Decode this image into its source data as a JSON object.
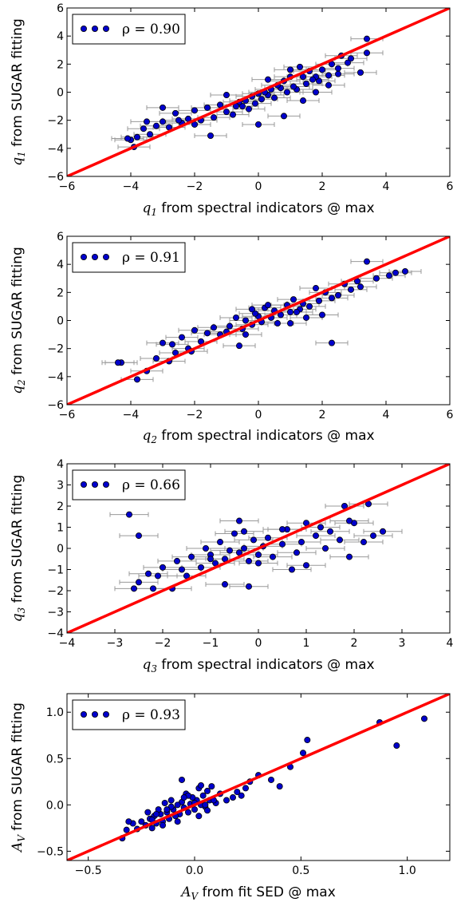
{
  "chart_data": [
    {
      "type": "scatter",
      "xlabel_var": "q",
      "xlabel_sub": "1",
      "xlabel_rest": " from spectral indicators @ max",
      "ylabel_var": "q",
      "ylabel_sub": "1",
      "ylabel_rest": " from SUGAR fitting",
      "xlim": [
        -6,
        6
      ],
      "ylim": [
        -6,
        6
      ],
      "xticks": [
        -6,
        -4,
        -2,
        0,
        2,
        4,
        6
      ],
      "yticks": [
        -6,
        -4,
        -2,
        0,
        2,
        4,
        6
      ],
      "xtick_labels": [
        "−6",
        "−4",
        "−2",
        "0",
        "2",
        "4",
        "6"
      ],
      "ytick_labels": [
        "−6",
        "−4",
        "−2",
        "0",
        "2",
        "4",
        "6"
      ],
      "legend": "ρ = 0.90",
      "legend_placement": "top-left",
      "line": [
        [
          -6,
          -6
        ],
        [
          6,
          6
        ]
      ],
      "xerr": 0.5,
      "x": [
        3.4,
        3.4,
        3.2,
        2.9,
        2.8,
        2.6,
        2.5,
        2.3,
        2.2,
        2.0,
        1.9,
        1.8,
        1.7,
        1.6,
        1.5,
        1.4,
        1.3,
        1.2,
        1.1,
        1.0,
        0.9,
        0.8,
        0.7,
        0.6,
        0.5,
        0.4,
        0.3,
        0.2,
        0.1,
        0.0,
        -0.1,
        -0.2,
        -0.3,
        -0.4,
        -0.5,
        -0.6,
        -0.8,
        -1.0,
        -1.2,
        -1.4,
        -1.6,
        -1.8,
        -2.0,
        -2.2,
        -2.4,
        -2.6,
        -2.8,
        -3.0,
        -3.2,
        -3.4,
        -3.6,
        -3.8,
        -4.0,
        -4.1,
        -3.0,
        -2.0,
        -1.5,
        0.0,
        0.8,
        1.4,
        2.2,
        1.0,
        2.5,
        1.8,
        0.3,
        -0.7,
        -1.0,
        -2.5,
        -3.5,
        -3.9
      ],
      "y": [
        3.8,
        2.8,
        1.4,
        2.4,
        2.1,
        2.6,
        1.7,
        2.0,
        1.2,
        1.6,
        0.8,
        1.1,
        0.9,
        1.5,
        0.6,
        -0.6,
        1.8,
        0.2,
        0.4,
        1.1,
        0.0,
        0.8,
        0.3,
        0.5,
        -0.4,
        0.2,
        -0.2,
        0.0,
        -0.5,
        -0.1,
        -0.8,
        -0.3,
        -1.2,
        -0.6,
        -1.0,
        -0.7,
        -1.6,
        -1.4,
        -0.9,
        -1.8,
        -1.1,
        -2.0,
        -1.3,
        -1.9,
        -2.2,
        -1.5,
        -2.5,
        -2.1,
        -2.4,
        -3.0,
        -2.6,
        -3.2,
        -3.4,
        -3.3,
        -1.1,
        -2.3,
        -3.1,
        -2.3,
        -1.7,
        1.1,
        0.5,
        1.6,
        1.3,
        0.0,
        0.9,
        -1.0,
        -0.2,
        -2.0,
        -2.1,
        -3.9
      ]
    },
    {
      "type": "scatter",
      "xlabel_var": "q",
      "xlabel_sub": "2",
      "xlabel_rest": " from spectral indicators @ max",
      "ylabel_var": "q",
      "ylabel_sub": "2",
      "ylabel_rest": " from SUGAR fitting",
      "xlim": [
        -6,
        6
      ],
      "ylim": [
        -6,
        6
      ],
      "xticks": [
        -6,
        -4,
        -2,
        0,
        2,
        4,
        6
      ],
      "yticks": [
        -6,
        -4,
        -2,
        0,
        2,
        4,
        6
      ],
      "xtick_labels": [
        "−6",
        "−4",
        "−2",
        "0",
        "2",
        "4",
        "6"
      ],
      "ytick_labels": [
        "−6",
        "−4",
        "−2",
        "0",
        "2",
        "4",
        "6"
      ],
      "legend": "ρ = 0.91",
      "legend_placement": "top-left",
      "line": [
        [
          -6,
          -6
        ],
        [
          6,
          6
        ]
      ],
      "xerr": 0.5,
      "x": [
        4.6,
        4.3,
        4.1,
        3.7,
        3.4,
        3.1,
        3.2,
        2.9,
        2.7,
        2.5,
        2.3,
        2.1,
        1.9,
        1.8,
        1.6,
        1.4,
        1.3,
        1.1,
        1.0,
        0.9,
        0.7,
        0.5,
        0.4,
        0.2,
        0.1,
        0.0,
        -0.1,
        -0.2,
        -0.4,
        -0.5,
        -0.7,
        -0.9,
        -1.0,
        -1.2,
        -1.4,
        -1.6,
        -1.8,
        -2.0,
        -2.2,
        -2.4,
        -2.6,
        -2.8,
        -3.0,
        -3.2,
        -3.5,
        -3.8,
        -4.3,
        -4.4,
        2.3,
        1.5,
        0.6,
        -0.4,
        -0.6,
        -2.1,
        -2.7,
        1.2,
        0.3,
        -0.2,
        2.0,
        1.0
      ],
      "y": [
        3.5,
        3.4,
        3.2,
        3.0,
        4.2,
        2.8,
        2.4,
        2.2,
        2.6,
        1.8,
        1.6,
        2.0,
        1.4,
        2.3,
        1.0,
        1.2,
        0.8,
        1.5,
        0.6,
        1.1,
        0.4,
        0.7,
        0.2,
        0.9,
        -0.1,
        0.3,
        0.5,
        -0.3,
        0.0,
        -0.6,
        0.2,
        -0.4,
        -0.8,
        -1.0,
        -0.5,
        -0.9,
        -1.5,
        -0.7,
        -2.0,
        -1.2,
        -2.3,
        -2.9,
        -1.6,
        -2.7,
        -3.6,
        -4.2,
        -3.0,
        -3.0,
        -1.6,
        0.2,
        -0.2,
        -1.0,
        -1.8,
        -2.2,
        -1.7,
        0.6,
        1.1,
        0.8,
        0.4,
        -0.2
      ]
    },
    {
      "type": "scatter",
      "xlabel_var": "q",
      "xlabel_sub": "3",
      "xlabel_rest": " from spectral indicators @ max",
      "ylabel_var": "q",
      "ylabel_sub": "3",
      "ylabel_rest": " from SUGAR fitting",
      "xlim": [
        -4,
        4
      ],
      "ylim": [
        -4,
        4
      ],
      "xticks": [
        -4,
        -3,
        -2,
        -1,
        0,
        1,
        2,
        3,
        4
      ],
      "yticks": [
        -4,
        -3,
        -2,
        -1,
        0,
        1,
        2,
        3,
        4
      ],
      "xtick_labels": [
        "−4",
        "−3",
        "−2",
        "−1",
        "0",
        "1",
        "2",
        "3",
        "4"
      ],
      "ytick_labels": [
        "−4",
        "−3",
        "−2",
        "−1",
        "0",
        "1",
        "2",
        "3",
        "4"
      ],
      "legend": "ρ = 0.66",
      "legend_placement": "top-left",
      "line": [
        [
          -4,
          -4
        ],
        [
          4,
          4
        ]
      ],
      "xerr": 0.4,
      "x": [
        2.3,
        1.8,
        2.6,
        2.4,
        2.0,
        1.9,
        1.7,
        1.5,
        1.4,
        1.2,
        1.0,
        0.9,
        0.8,
        0.6,
        0.5,
        0.3,
        0.2,
        0.1,
        0.0,
        -0.1,
        -0.2,
        -0.3,
        -0.4,
        -0.5,
        -0.6,
        -0.7,
        -0.8,
        -0.9,
        -1.0,
        -1.1,
        -1.2,
        -1.4,
        -1.6,
        -1.7,
        -1.8,
        -2.0,
        -2.1,
        -2.3,
        -2.5,
        -2.6,
        -2.7,
        -2.5,
        1.0,
        0.7,
        0.0,
        -0.4,
        -0.2,
        -0.7,
        -1.5,
        -2.2,
        1.9,
        2.2,
        1.3,
        0.5,
        -0.3,
        -1.0
      ],
      "y": [
        2.1,
        2.0,
        0.8,
        0.6,
        1.2,
        1.3,
        0.4,
        0.8,
        0.0,
        0.6,
        1.2,
        0.3,
        -0.2,
        0.9,
        0.2,
        -0.4,
        0.5,
        0.1,
        -0.3,
        0.4,
        -0.6,
        0.0,
        -0.2,
        0.7,
        -0.1,
        -0.5,
        0.3,
        -0.7,
        -0.3,
        0.0,
        -0.9,
        -0.4,
        -1.0,
        -0.6,
        -1.9,
        -0.9,
        -1.3,
        -1.2,
        -1.6,
        -1.9,
        1.6,
        0.6,
        -0.8,
        -1.0,
        -0.7,
        1.3,
        -1.8,
        -1.7,
        -1.3,
        -1.9,
        -0.4,
        0.3,
        1.0,
        0.9,
        0.8,
        -0.5
      ]
    },
    {
      "type": "scatter",
      "xlabel_var": "A",
      "xlabel_sub": "V",
      "xlabel_rest": " from fit SED @ max",
      "ylabel_var": "A",
      "ylabel_sub": "V",
      "ylabel_rest": " from SUGAR fitting",
      "xlim": [
        -0.6,
        1.2
      ],
      "ylim": [
        -0.6,
        1.2
      ],
      "xticks": [
        -0.5,
        0.0,
        0.5,
        1.0
      ],
      "yticks": [
        -0.5,
        0.0,
        0.5,
        1.0
      ],
      "xtick_labels": [
        "−0.5",
        "0.0",
        "0.5",
        "1.0"
      ],
      "ytick_labels": [
        "−0.5",
        "0.0",
        "0.5",
        "1.0"
      ],
      "legend": "ρ = 0.93",
      "legend_placement": "top-left",
      "line": [
        [
          -0.6,
          -0.6
        ],
        [
          1.2,
          1.2
        ]
      ],
      "xerr": 0,
      "x": [
        1.08,
        0.95,
        0.87,
        0.53,
        0.51,
        0.45,
        0.4,
        0.36,
        0.3,
        0.26,
        0.24,
        0.22,
        0.2,
        0.18,
        0.15,
        0.12,
        0.1,
        0.08,
        0.07,
        0.06,
        0.05,
        0.04,
        0.03,
        0.02,
        0.01,
        0.0,
        -0.01,
        -0.02,
        -0.03,
        -0.04,
        -0.05,
        -0.06,
        -0.07,
        -0.08,
        -0.09,
        -0.1,
        -0.11,
        -0.12,
        -0.13,
        -0.14,
        -0.15,
        -0.16,
        -0.17,
        -0.18,
        -0.19,
        -0.2,
        -0.21,
        -0.22,
        -0.23,
        -0.25,
        -0.27,
        -0.29,
        -0.31,
        -0.32,
        -0.34,
        -0.11,
        -0.06,
        -0.03,
        0.02,
        0.05,
        0.09,
        -0.15,
        -0.2,
        -0.08,
        0.0,
        0.03,
        -0.13,
        -0.18,
        -0.05,
        0.06
      ],
      "y": [
        0.93,
        0.64,
        0.89,
        0.7,
        0.56,
        0.41,
        0.2,
        0.27,
        0.32,
        0.25,
        0.18,
        0.1,
        0.14,
        0.08,
        0.05,
        0.12,
        0.02,
        0.2,
        0.05,
        0.15,
        -0.02,
        0.1,
        0.0,
        0.18,
        0.05,
        -0.05,
        0.08,
        0.01,
        -0.08,
        0.12,
        -0.03,
        0.03,
        -0.1,
        0.0,
        -0.12,
        -0.05,
        0.05,
        -0.15,
        -0.08,
        0.02,
        -0.18,
        -0.1,
        -0.05,
        -0.2,
        -0.12,
        -0.25,
        -0.15,
        -0.08,
        -0.22,
        -0.18,
        -0.26,
        -0.2,
        -0.18,
        -0.27,
        -0.36,
        -0.02,
        0.27,
        0.1,
        -0.12,
        0.0,
        0.05,
        -0.22,
        -0.16,
        -0.18,
        0.02,
        0.21,
        -0.05,
        -0.1,
        0.08,
        -0.06
      ]
    }
  ]
}
